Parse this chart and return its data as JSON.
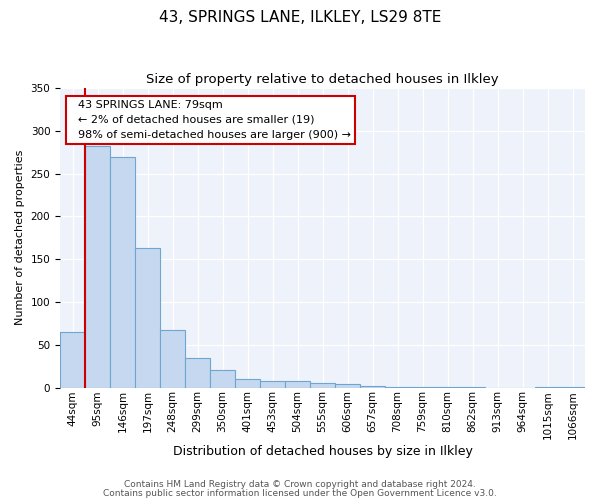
{
  "title": "43, SPRINGS LANE, ILKLEY, LS29 8TE",
  "subtitle": "Size of property relative to detached houses in Ilkley",
  "xlabel": "Distribution of detached houses by size in Ilkley",
  "ylabel": "Number of detached properties",
  "bin_labels": [
    "44sqm",
    "95sqm",
    "146sqm",
    "197sqm",
    "248sqm",
    "299sqm",
    "350sqm",
    "401sqm",
    "453sqm",
    "504sqm",
    "555sqm",
    "606sqm",
    "657sqm",
    "708sqm",
    "759sqm",
    "810sqm",
    "862sqm",
    "913sqm",
    "964sqm",
    "1015sqm",
    "1066sqm"
  ],
  "bar_heights": [
    65,
    282,
    270,
    163,
    67,
    34,
    20,
    10,
    8,
    8,
    5,
    4,
    2,
    1,
    1,
    1,
    1,
    0,
    0,
    1,
    1
  ],
  "bar_color": "#c5d8f0",
  "bar_edge_color": "#6ea6d0",
  "ylim": [
    0,
    350
  ],
  "yticks": [
    0,
    50,
    100,
    150,
    200,
    250,
    300,
    350
  ],
  "property_line_x": 1,
  "property_line_color": "#cc0000",
  "annotation_title": "43 SPRINGS LANE: 79sqm",
  "annotation_line1": "← 2% of detached houses are smaller (19)",
  "annotation_line2": "98% of semi-detached houses are larger (900) →",
  "annotation_box_color": "#cc0000",
  "footer1": "Contains HM Land Registry data © Crown copyright and database right 2024.",
  "footer2": "Contains public sector information licensed under the Open Government Licence v3.0.",
  "title_fontsize": 11,
  "subtitle_fontsize": 9.5,
  "xlabel_fontsize": 9,
  "ylabel_fontsize": 8,
  "tick_fontsize": 7.5,
  "annotation_fontsize": 8,
  "footer_fontsize": 6.5
}
